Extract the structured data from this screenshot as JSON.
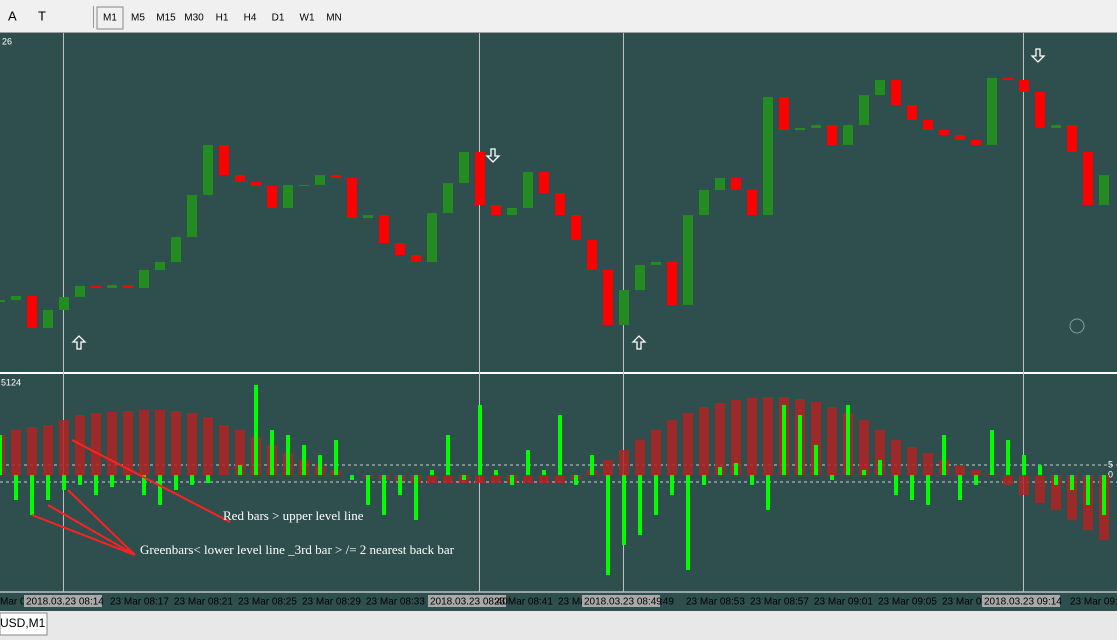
{
  "toolbar": {
    "tools": [
      "A",
      "T"
    ],
    "timeframes": [
      "M1",
      "M5",
      "M15",
      "M30",
      "H1",
      "H4",
      "D1",
      "W1",
      "MN"
    ]
  },
  "chart": {
    "label": "26",
    "open": [
      70,
      72,
      76,
      44,
      62,
      75,
      86,
      84,
      87,
      84,
      102,
      110,
      135,
      177,
      227,
      197,
      190,
      186,
      164,
      187,
      187,
      197,
      194,
      154,
      157,
      129,
      117,
      110,
      159,
      189,
      220,
      167,
      157,
      164,
      200,
      179,
      157,
      132,
      102,
      47,
      82,
      107,
      110,
      67,
      157,
      182,
      194,
      182,
      157,
      275,
      242,
      244,
      247,
      227,
      247,
      277,
      292,
      267,
      252,
      242,
      237,
      232,
      227,
      294,
      292,
      280,
      244,
      247,
      220,
      167
    ],
    "close": [
      72,
      76,
      44,
      62,
      75,
      86,
      84,
      87,
      84,
      102,
      110,
      135,
      177,
      227,
      197,
      190,
      186,
      164,
      187,
      187,
      197,
      194,
      154,
      157,
      129,
      117,
      110,
      159,
      189,
      220,
      167,
      157,
      164,
      200,
      179,
      157,
      132,
      102,
      47,
      82,
      107,
      110,
      67,
      157,
      182,
      194,
      182,
      157,
      275,
      242,
      244,
      247,
      227,
      247,
      277,
      292,
      267,
      252,
      242,
      237,
      232,
      227,
      294,
      292,
      280,
      244,
      247,
      220,
      167,
      197
    ]
  },
  "indicator": {
    "label": "5124",
    "axis_labels": [
      "5",
      "0"
    ],
    "red": [
      40,
      45,
      48,
      50,
      55,
      60,
      62,
      63,
      64,
      65,
      65,
      64,
      62,
      58,
      50,
      45,
      38,
      30,
      22,
      15,
      10,
      5,
      0,
      -3,
      -5,
      -6,
      -8,
      -8,
      -8,
      -8,
      -8,
      -8,
      -8,
      -8,
      -8,
      -8,
      -5,
      5,
      15,
      25,
      35,
      45,
      55,
      62,
      68,
      72,
      75,
      77,
      78,
      78,
      76,
      73,
      68,
      62,
      55,
      45,
      35,
      28,
      22,
      15,
      10,
      5,
      2,
      -10,
      -20,
      -28,
      -35,
      -45,
      -55,
      -65
    ],
    "green": [
      40,
      -25,
      -40,
      -25,
      -15,
      -10,
      -20,
      -12,
      -5,
      -20,
      -30,
      -15,
      -10,
      -8,
      0,
      10,
      90,
      45,
      40,
      30,
      20,
      35,
      -5,
      -30,
      -40,
      -20,
      -45,
      5,
      40,
      -5,
      70,
      5,
      -10,
      25,
      5,
      60,
      -10,
      20,
      -100,
      -70,
      -60,
      -40,
      -20,
      -95,
      -10,
      8,
      12,
      -10,
      -35,
      70,
      60,
      30,
      -5,
      70,
      5,
      15,
      -20,
      -25,
      -30,
      40,
      -25,
      -10,
      45,
      35,
      20,
      10,
      -10,
      -15,
      -30,
      -40
    ]
  },
  "time_labels": [
    "Mar 08",
    "2018.03.23 08:14",
    "23 Mar 08:17",
    "23 Mar 08:21",
    "23 Mar 08:25",
    "23 Mar 08:29",
    "23 Mar 08:33",
    "2018.03.23 08:40",
    "23 Mar 08:41",
    "23 Ma",
    "2018.03.23 08:49",
    ":49",
    "23 Mar 08:53",
    "23 Mar 08:57",
    "23 Mar 09:01",
    "23 Mar 09:05",
    "23 Mar 09",
    "2018.03.23 09:14",
    "23 Mar 09:"
  ],
  "annotations": [
    "Red bars > upper level line",
    "Greenbars< lower level line _3rd bar > /= 2 nearest back bar"
  ],
  "tab": "USD,M1"
}
